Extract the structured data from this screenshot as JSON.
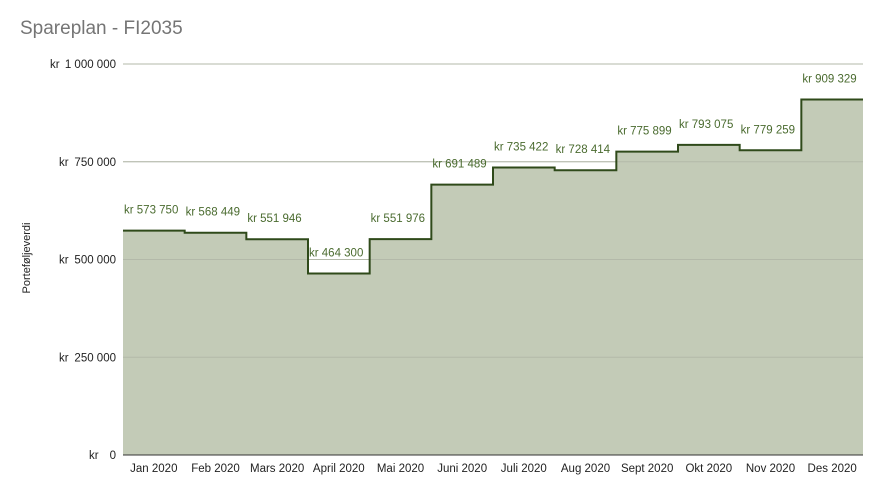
{
  "chart_data": {
    "type": "area",
    "step": true,
    "title": "Spareplan - FI2035",
    "xlabel": "",
    "ylabel": "Porteføljeverdi",
    "ylim": [
      0,
      1000000
    ],
    "yticks": [
      0,
      250000,
      500000,
      750000,
      1000000
    ],
    "ytick_labels": [
      "kr 0",
      "kr 250 000",
      "kr 500 000",
      "kr 750 000",
      "kr 1 000 000"
    ],
    "categories": [
      "Jan 2020",
      "Feb 2020",
      "Mars 2020",
      "April 2020",
      "Mai 2020",
      "Juni 2020",
      "Juli 2020",
      "Aug 2020",
      "Sept 2020",
      "Okt 2020",
      "Nov 2020",
      "Des 2020"
    ],
    "values": [
      573750,
      568449,
      551946,
      464300,
      551976,
      691489,
      735422,
      728414,
      775899,
      793075,
      779259,
      909329
    ],
    "data_labels": [
      "kr 573 750",
      "kr 568 449",
      "kr 551 946",
      "kr 464 300",
      "kr 551 976",
      "kr 691 489",
      "kr 735 422",
      "kr 728 414",
      "kr 775 899",
      "kr 793 075",
      "kr 779 259",
      "kr 909 329"
    ],
    "grid": true,
    "legend": "none",
    "colors": {
      "fill": "#c3cbb7",
      "line": "#2f4a1a",
      "label": "#4a6b2f",
      "grid": "#cfcfcf"
    }
  }
}
